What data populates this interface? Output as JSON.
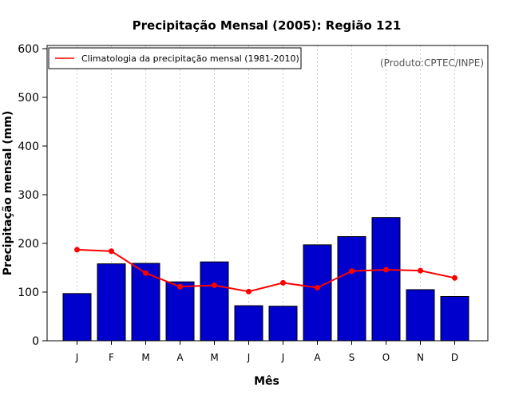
{
  "chart_data": {
    "type": "bar",
    "title": "Precipitação Mensal (2005): Região 121",
    "xlabel": "Mês",
    "ylabel": "Precipitação mensal (mm)",
    "ylim": [
      0,
      600
    ],
    "yticks": [
      0,
      100,
      200,
      300,
      400,
      500,
      600
    ],
    "categories": [
      "J",
      "F",
      "M",
      "A",
      "M",
      "J",
      "J",
      "A",
      "S",
      "O",
      "N",
      "D"
    ],
    "series": [
      {
        "name": "Precipitação mensal (2005)",
        "kind": "bar",
        "color": "#0000cc",
        "values": [
          97,
          158,
          159,
          121,
          162,
          72,
          71,
          197,
          214,
          253,
          105,
          91
        ]
      },
      {
        "name": "Climatologia da precipitação mensal (1981-2010)",
        "kind": "line",
        "color": "#ff0000",
        "values": [
          187,
          184,
          139,
          111,
          114,
          101,
          119,
          109,
          143,
          146,
          144,
          129
        ]
      }
    ],
    "legend": {
      "position": "top-left",
      "entries": [
        "Climatologia da precipitação mensal (1981-2010)"
      ]
    },
    "grid": "vertical-dotted",
    "annotation": "(Produto:CPTEC/INPE)"
  }
}
